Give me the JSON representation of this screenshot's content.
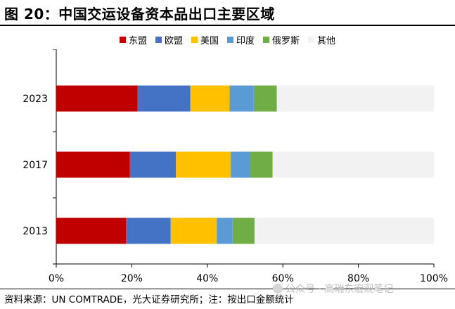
{
  "figure": {
    "title": "图 20：中国交运设备资本品出口主要区域",
    "source": "资料来源：UN COMTRADE，光大证券研究所；注：按出口金额统计",
    "watermark": "公众号 · 高瑞东宏观笔记"
  },
  "chart_data": {
    "type": "bar",
    "orientation": "horizontal",
    "stacked": true,
    "categories": [
      "2023",
      "2017",
      "2013"
    ],
    "series": [
      {
        "name": "东盟",
        "color": "#C00000",
        "values": [
          21.5,
          19.5,
          18.5
        ]
      },
      {
        "name": "欧盟",
        "color": "#4472C4",
        "values": [
          14,
          12.2,
          11.8
        ]
      },
      {
        "name": "美国",
        "color": "#FFC000",
        "values": [
          10.4,
          14.5,
          12.2
        ]
      },
      {
        "name": "印度",
        "color": "#5B9BD5",
        "values": [
          6.4,
          5.2,
          4.2
        ]
      },
      {
        "name": "俄罗斯",
        "color": "#70AD47",
        "values": [
          6.1,
          5.9,
          5.8
        ]
      },
      {
        "name": "其他",
        "color": "#F2F2F2",
        "values": [
          41.6,
          42.7,
          47.5
        ]
      }
    ],
    "xlim": [
      0,
      100
    ],
    "xticks": [
      "0%",
      "20%",
      "40%",
      "60%",
      "80%",
      "100%"
    ],
    "legend_position": "top",
    "grid": false
  }
}
